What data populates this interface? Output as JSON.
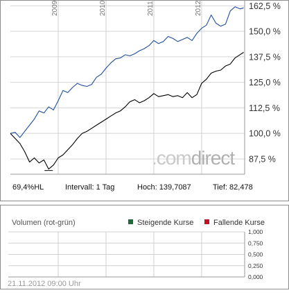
{
  "chart_data": [
    {
      "type": "line",
      "x_ticks": [
        "2009",
        "2010",
        "2011",
        "2012"
      ],
      "y_ticks": [
        "162,5 %",
        "150,0 %",
        "137,5 %",
        "125,0 %",
        "112,5 %",
        "100,0 %",
        "87,5 %"
      ],
      "y_tick_values": [
        162.5,
        150.0,
        137.5,
        125.0,
        112.5,
        100.0,
        87.5
      ],
      "ylim": [
        80,
        165
      ],
      "xlim": [
        2008.0,
        2012.9
      ],
      "grid": true,
      "watermark": {
        "prefix": ".com",
        "suffix": "direct"
      },
      "series": [
        {
          "color": "#1f4e9c",
          "x": [
            2008.0,
            2008.1,
            2008.2,
            2008.3,
            2008.4,
            2008.5,
            2008.6,
            2008.7,
            2008.8,
            2008.9,
            2009.0,
            2009.1,
            2009.2,
            2009.3,
            2009.4,
            2009.5,
            2009.6,
            2009.7,
            2009.8,
            2009.9,
            2010.0,
            2010.1,
            2010.2,
            2010.3,
            2010.4,
            2010.5,
            2010.6,
            2010.7,
            2010.8,
            2010.9,
            2011.0,
            2011.1,
            2011.2,
            2011.3,
            2011.4,
            2011.5,
            2011.6,
            2011.7,
            2011.8,
            2011.9,
            2012.0,
            2012.1,
            2012.2,
            2012.3,
            2012.4,
            2012.5,
            2012.6,
            2012.7,
            2012.8,
            2012.88
          ],
          "values": [
            100.0,
            100.5,
            98.0,
            101.0,
            104.0,
            107.0,
            111.0,
            110.0,
            113.0,
            111.5,
            116.0,
            121.0,
            120.0,
            122.5,
            124.5,
            123.5,
            123.0,
            124.0,
            127.5,
            129.0,
            132.0,
            134.5,
            136.5,
            137.0,
            138.5,
            138.0,
            139.0,
            140.5,
            141.5,
            143.0,
            145.5,
            144.0,
            145.0,
            147.5,
            146.5,
            145.0,
            146.0,
            147.0,
            145.5,
            149.0,
            151.5,
            153.0,
            158.0,
            154.0,
            152.5,
            153.5,
            160.0,
            162.0,
            161.0,
            161.5
          ]
        },
        {
          "color": "#000000",
          "x": [
            2008.0,
            2008.1,
            2008.2,
            2008.3,
            2008.4,
            2008.5,
            2008.6,
            2008.7,
            2008.8,
            2008.9,
            2009.0,
            2009.1,
            2009.2,
            2009.3,
            2009.4,
            2009.5,
            2009.6,
            2009.7,
            2009.8,
            2009.9,
            2010.0,
            2010.1,
            2010.2,
            2010.3,
            2010.4,
            2010.5,
            2010.6,
            2010.7,
            2010.8,
            2010.9,
            2011.0,
            2011.1,
            2011.2,
            2011.3,
            2011.4,
            2011.5,
            2011.6,
            2011.7,
            2011.8,
            2011.9,
            2012.0,
            2012.1,
            2012.2,
            2012.3,
            2012.4,
            2012.5,
            2012.6,
            2012.7,
            2012.8,
            2012.88
          ],
          "values": [
            100.0,
            97.5,
            95.0,
            91.0,
            86.0,
            88.0,
            85.5,
            87.0,
            82.5,
            84.5,
            88.0,
            89.5,
            92.0,
            94.5,
            97.5,
            100.0,
            101.0,
            102.5,
            104.0,
            105.5,
            107.0,
            108.5,
            110.0,
            111.0,
            113.0,
            115.5,
            116.5,
            115.0,
            116.0,
            117.5,
            119.5,
            118.0,
            118.5,
            119.0,
            118.0,
            118.5,
            117.5,
            120.0,
            117.5,
            119.0,
            124.5,
            126.5,
            129.5,
            130.5,
            131.0,
            133.0,
            134.0,
            137.0,
            138.5,
            139.7
          ]
        }
      ]
    },
    {
      "type": "bar",
      "title": "Volumen (rot-grün)",
      "legend": [
        {
          "label": "Steigende Kurse",
          "color": "#1d6b3b"
        },
        {
          "label": "Fallende Kurse",
          "color": "#c0122a"
        }
      ],
      "y_ticks": [
        "1,000",
        "0,750",
        "0,500",
        "0,250",
        "0,000"
      ],
      "y_tick_values": [
        1.0,
        0.75,
        0.5,
        0.25,
        0.0
      ],
      "ylim": [
        0,
        1
      ],
      "grid": true,
      "values": []
    }
  ],
  "stats": {
    "hl": "69,4%HL",
    "interval": "Intervall: 1 Tag",
    "high": "Hoch: 139,7087",
    "low": "Tief:  82,478"
  },
  "timestamp": "21.11.2012 09:00 Uhr"
}
